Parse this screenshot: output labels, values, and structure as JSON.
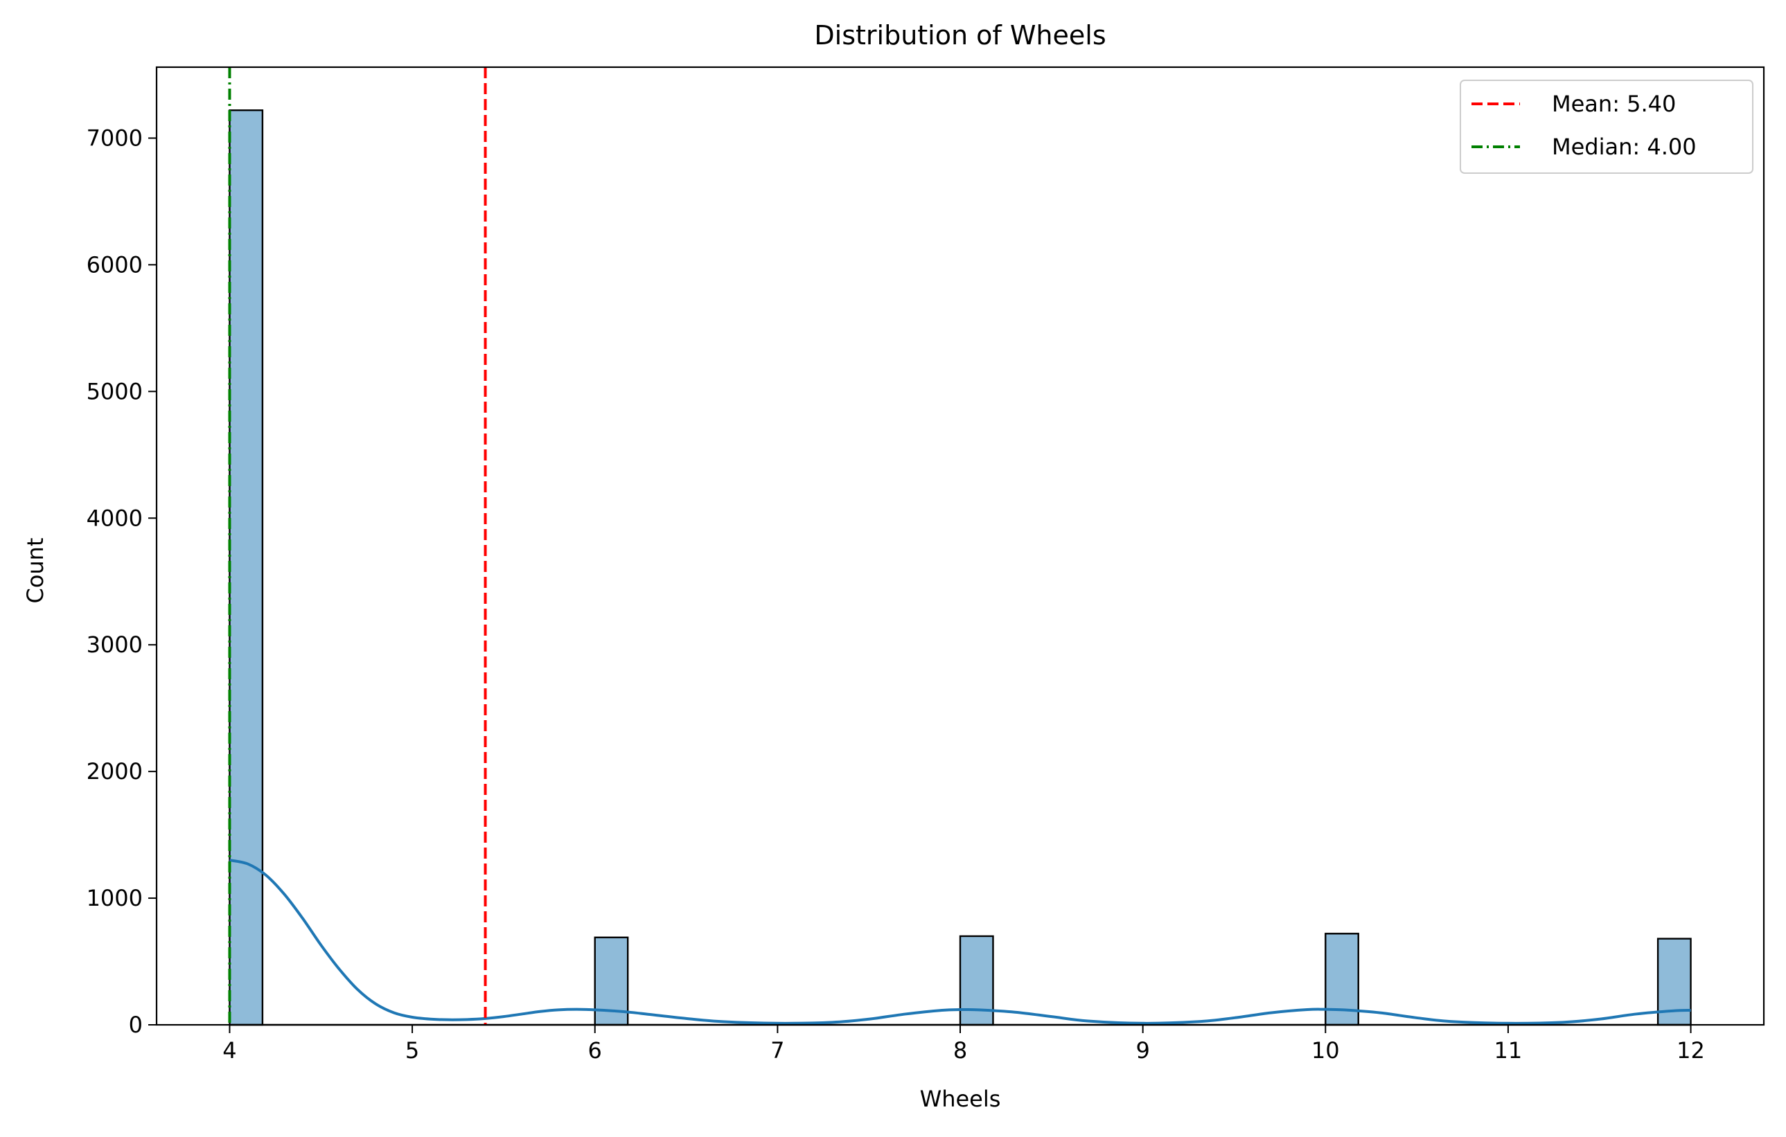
{
  "chart_data": {
    "type": "bar",
    "title": "Distribution of Wheels",
    "xlabel": "Wheels",
    "ylabel": "Count",
    "xlim": [
      3.6,
      12.4
    ],
    "ylim": [
      0,
      7560
    ],
    "xticks": [
      4,
      5,
      6,
      7,
      8,
      9,
      10,
      11,
      12
    ],
    "yticks": [
      0,
      1000,
      2000,
      3000,
      4000,
      5000,
      6000,
      7000
    ],
    "bin_width": 0.18,
    "bars": [
      {
        "x_start": 4.0,
        "x_end": 4.18,
        "count": 7220
      },
      {
        "x_start": 6.0,
        "x_end": 6.18,
        "count": 690
      },
      {
        "x_start": 8.0,
        "x_end": 8.18,
        "count": 700
      },
      {
        "x_start": 10.0,
        "x_end": 10.18,
        "count": 720
      },
      {
        "x_start": 11.82,
        "x_end": 12.0,
        "count": 680
      }
    ],
    "kde_curve": {
      "x": [
        4.0,
        4.1,
        4.2,
        4.3,
        4.4,
        4.5,
        4.6,
        4.7,
        4.8,
        4.9,
        5.0,
        5.1,
        5.2,
        5.3,
        5.4,
        5.5,
        5.6,
        5.7,
        5.8,
        5.9,
        6.0,
        6.1,
        6.2,
        6.3,
        6.5,
        6.7,
        7.0,
        7.3,
        7.5,
        7.7,
        7.9,
        8.0,
        8.1,
        8.3,
        8.5,
        8.7,
        9.0,
        9.3,
        9.5,
        9.7,
        9.9,
        10.0,
        10.1,
        10.3,
        10.5,
        10.7,
        11.0,
        11.3,
        11.5,
        11.7,
        11.9,
        12.0
      ],
      "y": [
        1300,
        1270,
        1180,
        1030,
        840,
        630,
        440,
        280,
        165,
        95,
        60,
        45,
        40,
        42,
        50,
        65,
        85,
        105,
        118,
        122,
        118,
        110,
        98,
        82,
        50,
        25,
        12,
        20,
        45,
        85,
        115,
        120,
        118,
        100,
        65,
        30,
        12,
        25,
        55,
        95,
        120,
        122,
        118,
        95,
        55,
        25,
        12,
        20,
        45,
        85,
        110,
        115
      ]
    },
    "reference_lines": [
      {
        "label": "Mean: 5.40",
        "value": 5.4,
        "color": "#ff0000",
        "style": "dashed"
      },
      {
        "label": "Median: 4.00",
        "value": 4.0,
        "color": "#008000",
        "style": "dashdot"
      }
    ],
    "legend_position": "top-right",
    "bar_color": "#1f77b4",
    "bar_fill_opacity": 0.5,
    "kde_color": "#1f77b4",
    "grid": false
  }
}
